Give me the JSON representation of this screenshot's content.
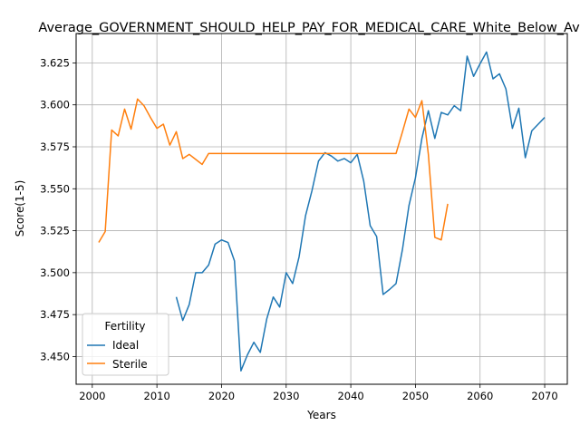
{
  "chart_data": {
    "type": "line",
    "title": "Average_GOVERNMENT_SHOULD_HELP_PAY_FOR_MEDICAL_CARE_White_Below_Average",
    "xlabel": "Years",
    "ylabel": "Score(1-5)",
    "xlim": [
      1997.5,
      2073.5
    ],
    "ylim": [
      3.4335,
      3.6425
    ],
    "xticks": [
      2000,
      2010,
      2020,
      2030,
      2040,
      2050,
      2060,
      2070
    ],
    "yticks": [
      3.45,
      3.475,
      3.5,
      3.525,
      3.55,
      3.575,
      3.6,
      3.625
    ],
    "grid": true,
    "legend": {
      "title": "Fertility",
      "placement": "lower-left"
    },
    "series": [
      {
        "name": "Ideal",
        "color": "#1f77b4",
        "x": [
          2013,
          2014,
          2015,
          2016,
          2017,
          2018,
          2019,
          2020,
          2021,
          2022,
          2023,
          2024,
          2025,
          2026,
          2027,
          2028,
          2029,
          2030,
          2031,
          2032,
          2033,
          2034,
          2035,
          2036,
          2037,
          2038,
          2039,
          2040,
          2041,
          2042,
          2043,
          2044,
          2045,
          2046,
          2047,
          2048,
          2049,
          2050,
          2051,
          2052,
          2053,
          2054,
          2055,
          2056,
          2057,
          2058,
          2059,
          2060,
          2061,
          2062,
          2063,
          2064,
          2065,
          2066,
          2067,
          2068,
          2069,
          2070
        ],
        "y": [
          3.4855,
          3.4715,
          3.481,
          3.5,
          3.5,
          3.5045,
          3.517,
          3.5195,
          3.518,
          3.507,
          3.4415,
          3.451,
          3.4585,
          3.4525,
          3.4725,
          3.4855,
          3.4795,
          3.5,
          3.4935,
          3.5095,
          3.534,
          3.549,
          3.5665,
          3.5715,
          3.5695,
          3.5665,
          3.568,
          3.5655,
          3.5705,
          3.5545,
          3.528,
          3.5215,
          3.487,
          3.49,
          3.4935,
          3.514,
          3.54,
          3.5565,
          3.58,
          3.5965,
          3.58,
          3.5955,
          3.594,
          3.5995,
          3.5965,
          3.629,
          3.617,
          3.6245,
          3.6315,
          3.6155,
          3.6185,
          3.6095,
          3.586,
          3.598,
          3.5685,
          3.5845,
          3.5885,
          3.5925
        ]
      },
      {
        "name": "Sterile",
        "color": "#ff7f0e",
        "x": [
          2001,
          2002,
          2003,
          2004,
          2005,
          2006,
          2007,
          2008,
          2009,
          2010,
          2011,
          2012,
          2013,
          2014,
          2015,
          2016,
          2017,
          2018,
          2019,
          2020,
          2021,
          2022,
          2023,
          2024,
          2025,
          2026,
          2027,
          2028,
          2029,
          2030,
          2031,
          2032,
          2033,
          2034,
          2035,
          2036,
          2037,
          2038,
          2039,
          2040,
          2041,
          2042,
          2043,
          2044,
          2045,
          2046,
          2047,
          2048,
          2049,
          2050,
          2051,
          2052,
          2053,
          2054,
          2055
        ],
        "y": [
          3.518,
          3.5245,
          3.585,
          3.5815,
          3.5975,
          3.5855,
          3.6035,
          3.5995,
          3.5925,
          3.586,
          3.5885,
          3.576,
          3.584,
          3.568,
          3.5705,
          3.5675,
          3.5645,
          3.571,
          3.571,
          3.571,
          3.571,
          3.571,
          3.571,
          3.571,
          3.571,
          3.571,
          3.571,
          3.571,
          3.571,
          3.571,
          3.571,
          3.571,
          3.571,
          3.571,
          3.571,
          3.571,
          3.571,
          3.571,
          3.571,
          3.571,
          3.571,
          3.571,
          3.571,
          3.571,
          3.571,
          3.571,
          3.571,
          3.584,
          3.5975,
          3.5925,
          3.6025,
          3.5705,
          3.521,
          3.5195,
          3.541
        ]
      }
    ]
  }
}
